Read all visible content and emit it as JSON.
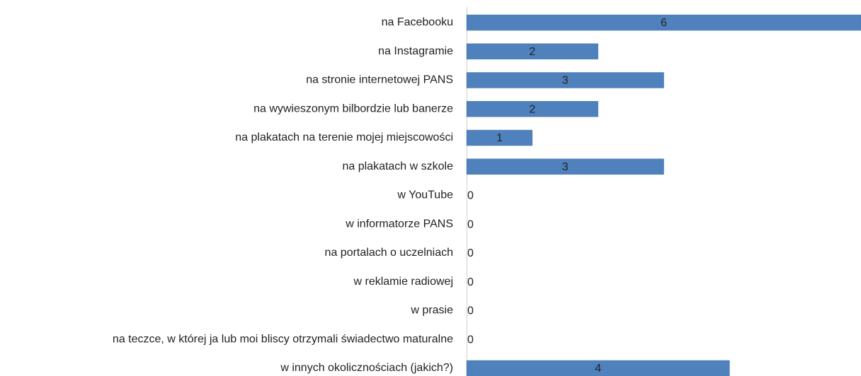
{
  "chart_data": {
    "type": "bar",
    "orientation": "horizontal",
    "categories": [
      "na Facebooku",
      "na Instagramie",
      "na stronie internetowej PANS",
      "na wywieszonym bilbordzie lub banerze",
      "na plakatach na terenie mojej miejscowości",
      "na plakatach w szkole",
      "w YouTube",
      "w informatorze PANS",
      "na portalach o uczelniach",
      "w reklamie radiowej",
      "w prasie",
      "na teczce, w której ja lub moi bliscy otrzymali świadectwo maturalne",
      "w innych okolicznościach (jakich?)"
    ],
    "values": [
      6,
      2,
      3,
      2,
      1,
      3,
      0,
      0,
      0,
      0,
      0,
      0,
      4
    ],
    "color": "#4f81bd",
    "xlim": [
      0,
      6
    ]
  }
}
